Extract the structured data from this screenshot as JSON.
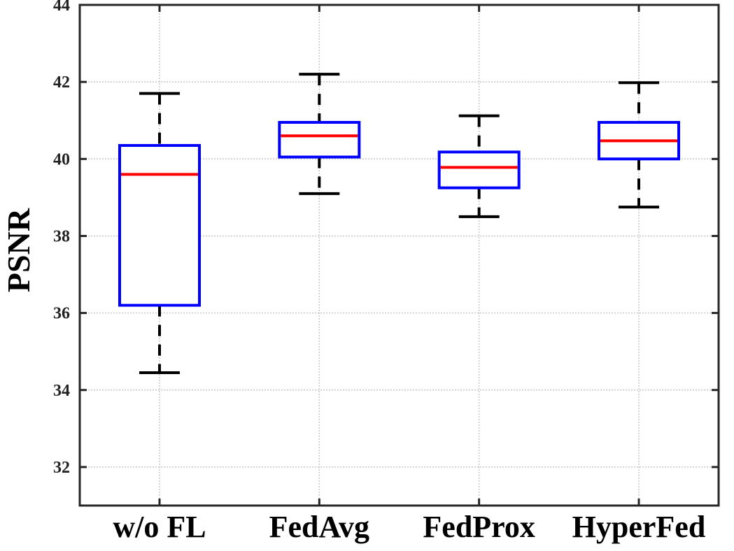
{
  "chart_data": {
    "type": "box",
    "title": "",
    "xlabel": "",
    "ylabel": "PSNR",
    "ylim": [
      31,
      44
    ],
    "yticks": [
      32,
      34,
      36,
      38,
      40,
      42,
      44
    ],
    "grid": true,
    "categories": [
      "w/o FL",
      "FedAvg",
      "FedProx",
      "HyperFed"
    ],
    "boxes": [
      {
        "label": "w/o FL",
        "whisker_low": 34.45,
        "q1": 36.2,
        "median": 39.6,
        "q3": 40.35,
        "whisker_high": 41.7
      },
      {
        "label": "FedAvg",
        "whisker_low": 39.1,
        "q1": 40.05,
        "median": 40.6,
        "q3": 40.95,
        "whisker_high": 42.2
      },
      {
        "label": "FedProx",
        "whisker_low": 38.5,
        "q1": 39.25,
        "median": 39.78,
        "q3": 40.18,
        "whisker_high": 41.12
      },
      {
        "label": "HyperFed",
        "whisker_low": 38.75,
        "q1": 40.0,
        "median": 40.47,
        "q3": 40.95,
        "whisker_high": 41.98
      }
    ],
    "colors": {
      "box": "#0000ff",
      "median": "#ff0000",
      "whisker": "#000000",
      "grid": "#c8c8c8",
      "axes": "#262626"
    }
  }
}
